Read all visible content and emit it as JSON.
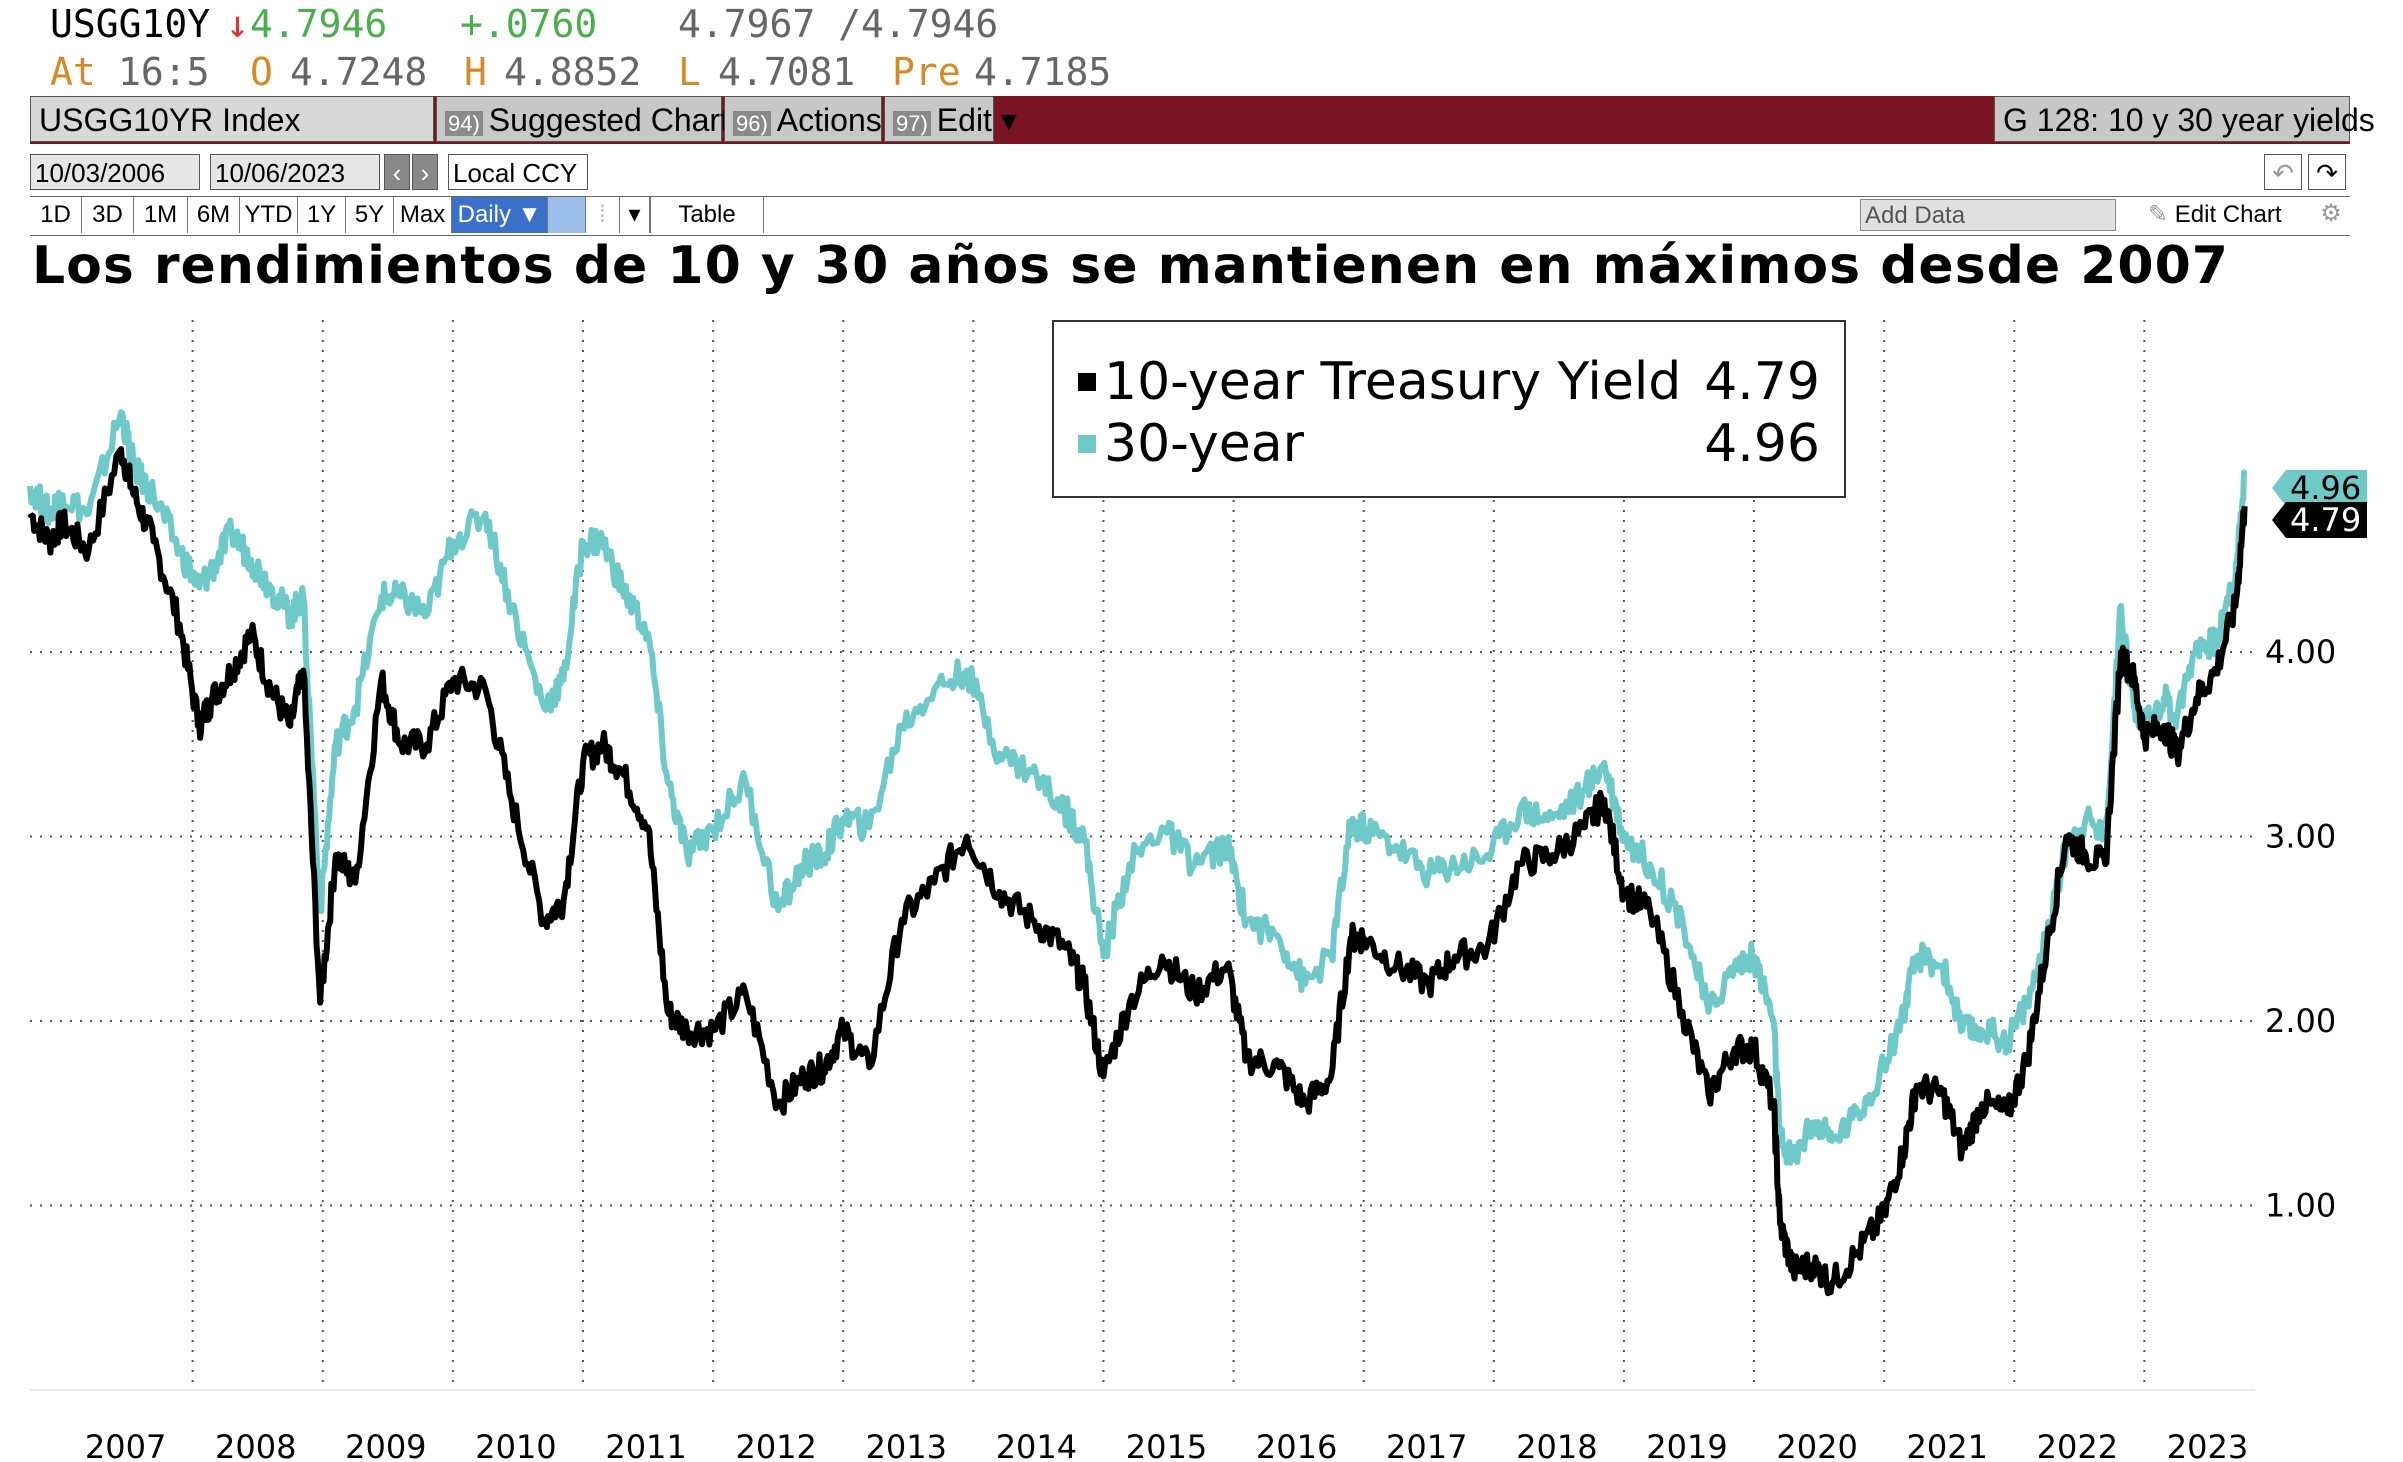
{
  "quote": {
    "ticker": "USGG10Y",
    "arrow": "↓",
    "last": "4.7967",
    "current": "4.7946",
    "change": "+.0760",
    "bid_ask": "4.7967 /4.7946",
    "at_label": "At",
    "time": "16:5",
    "open_label": "O",
    "open": "4.7248",
    "high_label": "H",
    "high": "4.8852",
    "low_label": "L",
    "low": "4.7081",
    "pre_label": "Pre",
    "pre": "4.7185"
  },
  "toolbar": {
    "security": "USGG10YR Index",
    "suggested_num": "94)",
    "suggested_label": "Suggested Charts",
    "actions_num": "96)",
    "actions_label": "Actions ▾",
    "edit_num": "97)",
    "edit_label": "Edit ▾",
    "chart_name": "G 128: 10 y 30 year yields"
  },
  "daterange": {
    "from": "10/03/2006",
    "to": "10/06/2023",
    "prev": "‹",
    "next": "›",
    "currency": "Local CCY",
    "undo": "↶",
    "redo": "↷"
  },
  "ranges": {
    "buttons": [
      "1D",
      "3D",
      "1M",
      "6M",
      "YTD",
      "1Y",
      "5Y",
      "Max"
    ],
    "frequency": "Daily ▼",
    "table_label": "Table",
    "add_data_placeholder": "Add Data",
    "edit_chart": "Edit Chart"
  },
  "chart_title": "Los rendimientos de 10 y 30 años se mantienen en máximos desde 2007",
  "legend": {
    "series_10": "10-year Treasury Yield",
    "value_10": "4.79",
    "series_30": "30-year",
    "value_30": "4.96"
  },
  "colors": {
    "series_10": "#000000",
    "series_30": "#70c9c9",
    "header_bar": "#7a1422"
  },
  "chart_data": {
    "type": "line",
    "title": "Los rendimientos de 10 y 30 años se mantienen en máximos desde 2007",
    "xlabel": "",
    "ylabel": "",
    "xlim": [
      2006.75,
      2023.85
    ],
    "ylim": [
      0.0,
      5.8
    ],
    "y_ticks": [
      "1.00",
      "2.00",
      "3.00",
      "4.00"
    ],
    "x_ticks": [
      "2007",
      "2008",
      "2009",
      "2010",
      "2011",
      "2012",
      "2013",
      "2014",
      "2015",
      "2016",
      "2017",
      "2018",
      "2019",
      "2020",
      "2021",
      "2022",
      "2023"
    ],
    "grid": true,
    "legend_position": "top-center",
    "series": [
      {
        "name": "10-year Treasury Yield",
        "last": "4.79",
        "x": [
          2006.75,
          2006.9,
          2007.0,
          2007.2,
          2007.45,
          2007.55,
          2007.7,
          2007.9,
          2008.05,
          2008.15,
          2008.3,
          2008.45,
          2008.6,
          2008.75,
          2008.85,
          2008.98,
          2009.1,
          2009.25,
          2009.45,
          2009.6,
          2009.8,
          2010.0,
          2010.25,
          2010.45,
          2010.7,
          2010.85,
          2011.0,
          2011.15,
          2011.3,
          2011.5,
          2011.65,
          2011.8,
          2012.0,
          2012.25,
          2012.5,
          2012.7,
          2012.85,
          2013.0,
          2013.2,
          2013.45,
          2013.7,
          2013.95,
          2014.2,
          2014.45,
          2014.7,
          2014.85,
          2015.0,
          2015.2,
          2015.45,
          2015.7,
          2015.95,
          2016.1,
          2016.35,
          2016.55,
          2016.75,
          2016.9,
          2017.0,
          2017.25,
          2017.5,
          2017.7,
          2017.95,
          2018.2,
          2018.45,
          2018.7,
          2018.85,
          2019.0,
          2019.2,
          2019.45,
          2019.65,
          2019.85,
          2020.0,
          2020.15,
          2020.2,
          2020.3,
          2020.45,
          2020.6,
          2020.8,
          2021.0,
          2021.15,
          2021.25,
          2021.45,
          2021.6,
          2021.75,
          2021.95,
          2022.1,
          2022.25,
          2022.4,
          2022.55,
          2022.7,
          2022.82,
          2022.92,
          2023.0,
          2023.15,
          2023.25,
          2023.4,
          2023.55,
          2023.7,
          2023.77
        ],
        "y": [
          4.75,
          4.6,
          4.7,
          4.55,
          5.1,
          4.85,
          4.6,
          4.15,
          3.6,
          3.75,
          3.9,
          4.1,
          3.8,
          3.6,
          3.9,
          2.1,
          2.9,
          2.75,
          3.85,
          3.5,
          3.5,
          3.85,
          3.8,
          3.2,
          2.55,
          2.65,
          3.4,
          3.5,
          3.35,
          3.05,
          2.05,
          1.95,
          1.95,
          2.15,
          1.55,
          1.7,
          1.75,
          1.95,
          1.75,
          2.55,
          2.75,
          3.0,
          2.7,
          2.55,
          2.4,
          2.2,
          1.7,
          2.1,
          2.35,
          2.15,
          2.3,
          1.8,
          1.75,
          1.55,
          1.7,
          2.45,
          2.45,
          2.3,
          2.2,
          2.35,
          2.4,
          2.85,
          2.9,
          3.05,
          3.2,
          2.7,
          2.6,
          2.05,
          1.6,
          1.85,
          1.85,
          1.55,
          0.9,
          0.65,
          0.68,
          0.58,
          0.75,
          0.95,
          1.3,
          1.65,
          1.6,
          1.3,
          1.55,
          1.5,
          1.8,
          2.4,
          3.0,
          2.9,
          2.85,
          4.0,
          3.85,
          3.55,
          3.6,
          3.45,
          3.75,
          3.9,
          4.25,
          4.79
        ]
      },
      {
        "name": "30-year",
        "last": "4.96",
        "x": [
          2006.75,
          2006.9,
          2007.0,
          2007.2,
          2007.45,
          2007.55,
          2007.7,
          2007.9,
          2008.05,
          2008.15,
          2008.3,
          2008.45,
          2008.6,
          2008.75,
          2008.85,
          2008.98,
          2009.1,
          2009.25,
          2009.45,
          2009.6,
          2009.8,
          2010.0,
          2010.25,
          2010.45,
          2010.7,
          2010.85,
          2011.0,
          2011.15,
          2011.3,
          2011.5,
          2011.65,
          2011.8,
          2012.0,
          2012.25,
          2012.5,
          2012.7,
          2012.85,
          2013.0,
          2013.2,
          2013.45,
          2013.7,
          2013.95,
          2014.2,
          2014.45,
          2014.7,
          2014.85,
          2015.0,
          2015.2,
          2015.45,
          2015.7,
          2015.95,
          2016.1,
          2016.35,
          2016.55,
          2016.75,
          2016.9,
          2017.0,
          2017.25,
          2017.5,
          2017.7,
          2017.95,
          2018.2,
          2018.45,
          2018.7,
          2018.85,
          2019.0,
          2019.2,
          2019.45,
          2019.65,
          2019.85,
          2020.0,
          2020.15,
          2020.2,
          2020.3,
          2020.45,
          2020.6,
          2020.8,
          2021.0,
          2021.15,
          2021.25,
          2021.45,
          2021.6,
          2021.75,
          2021.95,
          2022.1,
          2022.25,
          2022.4,
          2022.55,
          2022.7,
          2022.82,
          2022.92,
          2023.0,
          2023.15,
          2023.25,
          2023.4,
          2023.55,
          2023.7,
          2023.77
        ],
        "y": [
          4.9,
          4.75,
          4.85,
          4.75,
          5.3,
          5.0,
          4.85,
          4.55,
          4.35,
          4.45,
          4.65,
          4.5,
          4.35,
          4.2,
          4.3,
          2.6,
          3.5,
          3.7,
          4.3,
          4.3,
          4.2,
          4.6,
          4.75,
          4.25,
          3.7,
          3.85,
          4.6,
          4.6,
          4.35,
          4.1,
          3.3,
          2.9,
          3.05,
          3.3,
          2.6,
          2.85,
          2.9,
          3.1,
          3.05,
          3.6,
          3.8,
          3.9,
          3.45,
          3.35,
          3.15,
          3.0,
          2.35,
          2.85,
          3.05,
          2.85,
          2.95,
          2.55,
          2.45,
          2.2,
          2.35,
          3.05,
          3.05,
          2.95,
          2.8,
          2.85,
          2.9,
          3.15,
          3.1,
          3.25,
          3.4,
          3.0,
          2.85,
          2.55,
          2.05,
          2.3,
          2.35,
          2.0,
          1.35,
          1.25,
          1.45,
          1.35,
          1.5,
          1.75,
          2.05,
          2.35,
          2.3,
          1.95,
          1.95,
          1.9,
          2.1,
          2.45,
          2.95,
          3.1,
          3.0,
          4.25,
          3.7,
          3.6,
          3.75,
          3.65,
          4.05,
          4.05,
          4.4,
          4.96
        ]
      }
    ]
  }
}
